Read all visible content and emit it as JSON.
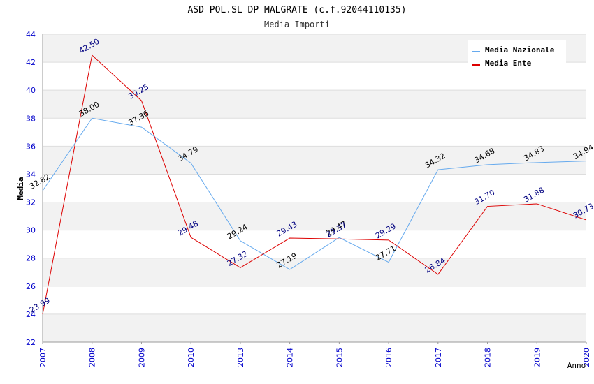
{
  "chart_data": {
    "type": "line",
    "title": "ASD POL.SL DP MALGRATE (c.f.92044110135)",
    "subtitle": "Media Importi",
    "xlabel": "Anno",
    "ylabel": "Media",
    "ylim": [
      22,
      44
    ],
    "y_ticks": [
      "22",
      "24",
      "26",
      "28",
      "30",
      "32",
      "34",
      "36",
      "38",
      "40",
      "42",
      "44"
    ],
    "categories": [
      "2007",
      "2008",
      "2009",
      "2010",
      "2013",
      "2014",
      "2015",
      "2016",
      "2017",
      "2018",
      "2019",
      "2020"
    ],
    "grid": true,
    "legend_position": "top-right",
    "series": [
      {
        "name": "Media Nazionale",
        "color": "#66aaee",
        "label_color": "#000000",
        "values": [
          32.82,
          38.0,
          37.36,
          34.79,
          29.24,
          27.19,
          29.47,
          27.71,
          34.32,
          34.68,
          34.83,
          34.94
        ],
        "labels": [
          "32.82",
          "38.00",
          "37.36",
          "34.79",
          "29.24",
          "27.19",
          "29.47",
          "27.71",
          "34.32",
          "34.68",
          "34.83",
          "34.94"
        ]
      },
      {
        "name": "Media Ente",
        "color": "#dd0000",
        "label_color": "#000080",
        "values": [
          23.99,
          42.5,
          39.25,
          29.48,
          27.32,
          29.43,
          29.37,
          29.29,
          26.84,
          31.7,
          31.88,
          30.73
        ],
        "labels": [
          "23.99",
          "42.50",
          "39.25",
          "29.48",
          "27.32",
          "29.43",
          "29.37",
          "29.29",
          "26.84",
          "31.70",
          "31.88",
          "30.73"
        ]
      }
    ],
    "colors": {
      "axis_tick_text": "#0000cc",
      "band_fill": "#f2f2f2",
      "grid_line": "#dddddd"
    }
  }
}
